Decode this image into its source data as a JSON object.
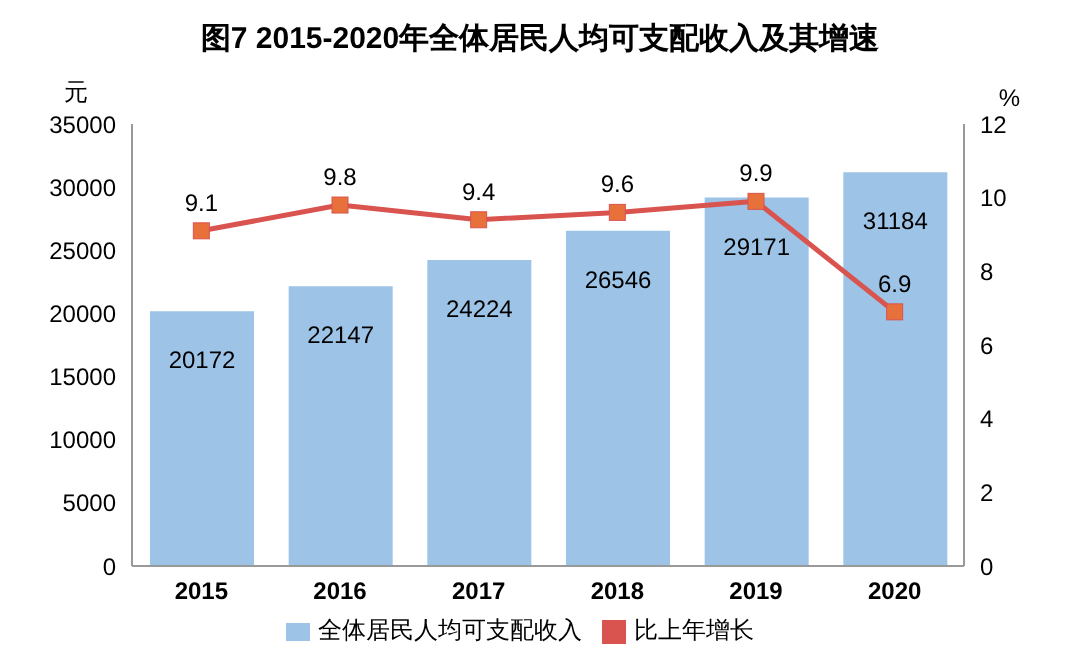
{
  "chart_data": {
    "type": "bar",
    "title": "图7   2015-2020年全体居民人均可支配收入及其增速",
    "ylabel": "元",
    "y2label": "%",
    "categories": [
      "2015",
      "2016",
      "2017",
      "2018",
      "2019",
      "2020"
    ],
    "series": [
      {
        "name": "全体居民人均可支配收入",
        "color": "#9dc3e6",
        "values": [
          20172,
          22147,
          24224,
          26546,
          29171,
          31184
        ]
      },
      {
        "name": "比上年增长",
        "type": "line",
        "axis": "y2",
        "color": "#d9534f",
        "values": [
          9.1,
          9.8,
          9.4,
          9.6,
          9.9,
          6.9
        ]
      }
    ],
    "ylim": [
      0,
      35000
    ],
    "yticks": [
      0,
      5000,
      10000,
      15000,
      20000,
      25000,
      30000,
      35000
    ],
    "y2lim": [
      0,
      12
    ],
    "y2ticks": [
      0,
      2,
      4,
      6,
      8,
      10,
      12
    ],
    "data_labels": true,
    "marker": "square",
    "legend": "bottom"
  }
}
